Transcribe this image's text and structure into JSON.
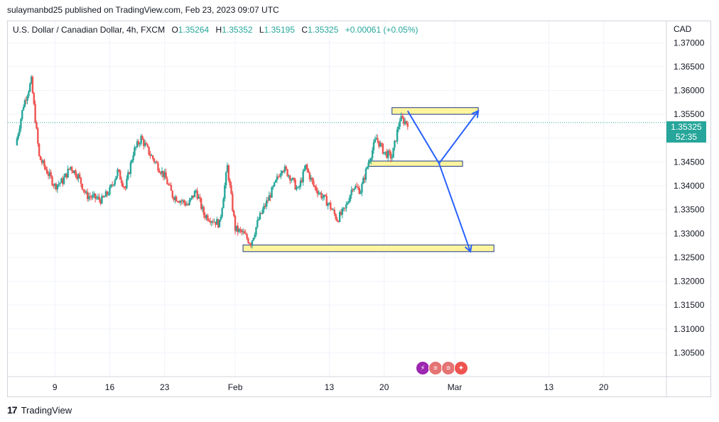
{
  "publish_line": "sulaymanbd25 published on TradingView.com, Feb 23, 2023 09:07 UTC",
  "legend": {
    "symbol": "U.S. Dollar / Canadian Dollar, 4h, FXCM",
    "o_label": "O",
    "o": "1.35264",
    "h_label": "H",
    "h": "1.35352",
    "l_label": "L",
    "l": "1.35195",
    "c_label": "C",
    "c": "1.35325",
    "change": "+0.00061 (+0.05%)"
  },
  "currency": "CAD",
  "last_price": {
    "price": "1.35325",
    "countdown": "52:35"
  },
  "footer_brand": "TradingView",
  "colors": {
    "up": "#26a69a",
    "down": "#ef5350",
    "zone_fill": "#fff59d",
    "zone_stroke": "#1e3a8a",
    "arrow": "#2962ff"
  },
  "event_icons": [
    "lightning-event-icon",
    "us-flag-icon",
    "us-flag-icon",
    "canada-flag-icon"
  ],
  "chart_data": {
    "type": "candlestick",
    "timeframe": "4h",
    "ylim": [
      1.3,
      1.3745
    ],
    "y_ticks": [
      1.305,
      1.31,
      1.315,
      1.32,
      1.325,
      1.33,
      1.335,
      1.34,
      1.345,
      1.35,
      1.355,
      1.36,
      1.365,
      1.37
    ],
    "y_tick_labels": [
      "1.30500",
      "1.31000",
      "1.31500",
      "1.32000",
      "1.32500",
      "1.33000",
      "1.33500",
      "1.34000",
      "1.34500",
      "1.35000",
      "1.35500",
      "1.36000",
      "1.36500",
      "1.37000"
    ],
    "x_ticks": [
      {
        "label": "9",
        "date": "2023-01-09"
      },
      {
        "label": "16",
        "date": "2023-01-16"
      },
      {
        "label": "23",
        "date": "2023-01-23"
      },
      {
        "label": "Feb",
        "date": "2023-02-01"
      },
      {
        "label": "13",
        "date": "2023-02-13"
      },
      {
        "label": "20",
        "date": "2023-02-20"
      },
      {
        "label": "Mar",
        "date": "2023-03-01"
      },
      {
        "label": "13",
        "date": "2023-03-13"
      },
      {
        "label": "20",
        "date": "2023-03-20"
      }
    ],
    "x_range": [
      "2023-01-03",
      "2023-03-28"
    ],
    "last_date": "2023-02-23",
    "close_path": [
      [
        "2023-01-04",
        1.3485
      ],
      [
        "2023-01-05",
        1.357
      ],
      [
        "2023-01-06",
        1.362
      ],
      [
        "2023-01-07",
        1.346
      ],
      [
        "2023-01-09",
        1.34
      ],
      [
        "2023-01-10",
        1.341
      ],
      [
        "2023-01-11",
        1.344
      ],
      [
        "2023-01-12",
        1.342
      ],
      [
        "2023-01-13",
        1.338
      ],
      [
        "2023-01-15",
        1.337
      ],
      [
        "2023-01-16",
        1.339
      ],
      [
        "2023-01-17",
        1.343
      ],
      [
        "2023-01-18",
        1.3395
      ],
      [
        "2023-01-19",
        1.347
      ],
      [
        "2023-01-20",
        1.35
      ],
      [
        "2023-01-21",
        1.347
      ],
      [
        "2023-01-23",
        1.342
      ],
      [
        "2023-01-24",
        1.338
      ],
      [
        "2023-01-25",
        1.337
      ],
      [
        "2023-01-26",
        1.336
      ],
      [
        "2023-01-27",
        1.339
      ],
      [
        "2023-01-28",
        1.334
      ],
      [
        "2023-01-30",
        1.332
      ],
      [
        "2023-01-31",
        1.344
      ],
      [
        "2023-02-01",
        1.331
      ],
      [
        "2023-02-02",
        1.33
      ],
      [
        "2023-02-03",
        1.328
      ],
      [
        "2023-02-04",
        1.333
      ],
      [
        "2023-02-06",
        1.34
      ],
      [
        "2023-02-07",
        1.344
      ],
      [
        "2023-02-08",
        1.342
      ],
      [
        "2023-02-09",
        1.339
      ],
      [
        "2023-02-10",
        1.344
      ],
      [
        "2023-02-11",
        1.34
      ],
      [
        "2023-02-13",
        1.336
      ],
      [
        "2023-02-14",
        1.333
      ],
      [
        "2023-02-15",
        1.335
      ],
      [
        "2023-02-16",
        1.34
      ],
      [
        "2023-02-17",
        1.339
      ],
      [
        "2023-02-18",
        1.345
      ],
      [
        "2023-02-19",
        1.35
      ],
      [
        "2023-02-20",
        1.347
      ],
      [
        "2023-02-21",
        1.346
      ],
      [
        "2023-02-22",
        1.354
      ],
      [
        "2023-02-23",
        1.35325
      ]
    ],
    "zones": [
      {
        "from": "2023-02-21",
        "to": "2023-03-04",
        "low": 1.355,
        "high": 1.3564
      },
      {
        "from": "2023-02-18",
        "to": "2023-03-02",
        "low": 1.3441,
        "high": 1.3452
      },
      {
        "from": "2023-02-02",
        "to": "2023-03-06",
        "low": 1.3262,
        "high": 1.3276
      }
    ],
    "projection_paths": [
      [
        [
          "2023-02-23",
          1.3557
        ],
        [
          "2023-02-27",
          1.3447
        ],
        [
          "2023-03-04",
          1.3557
        ]
      ],
      [
        [
          "2023-02-27",
          1.3447
        ],
        [
          "2023-03-03",
          1.3262
        ]
      ]
    ],
    "last_price_line": 1.35325
  }
}
